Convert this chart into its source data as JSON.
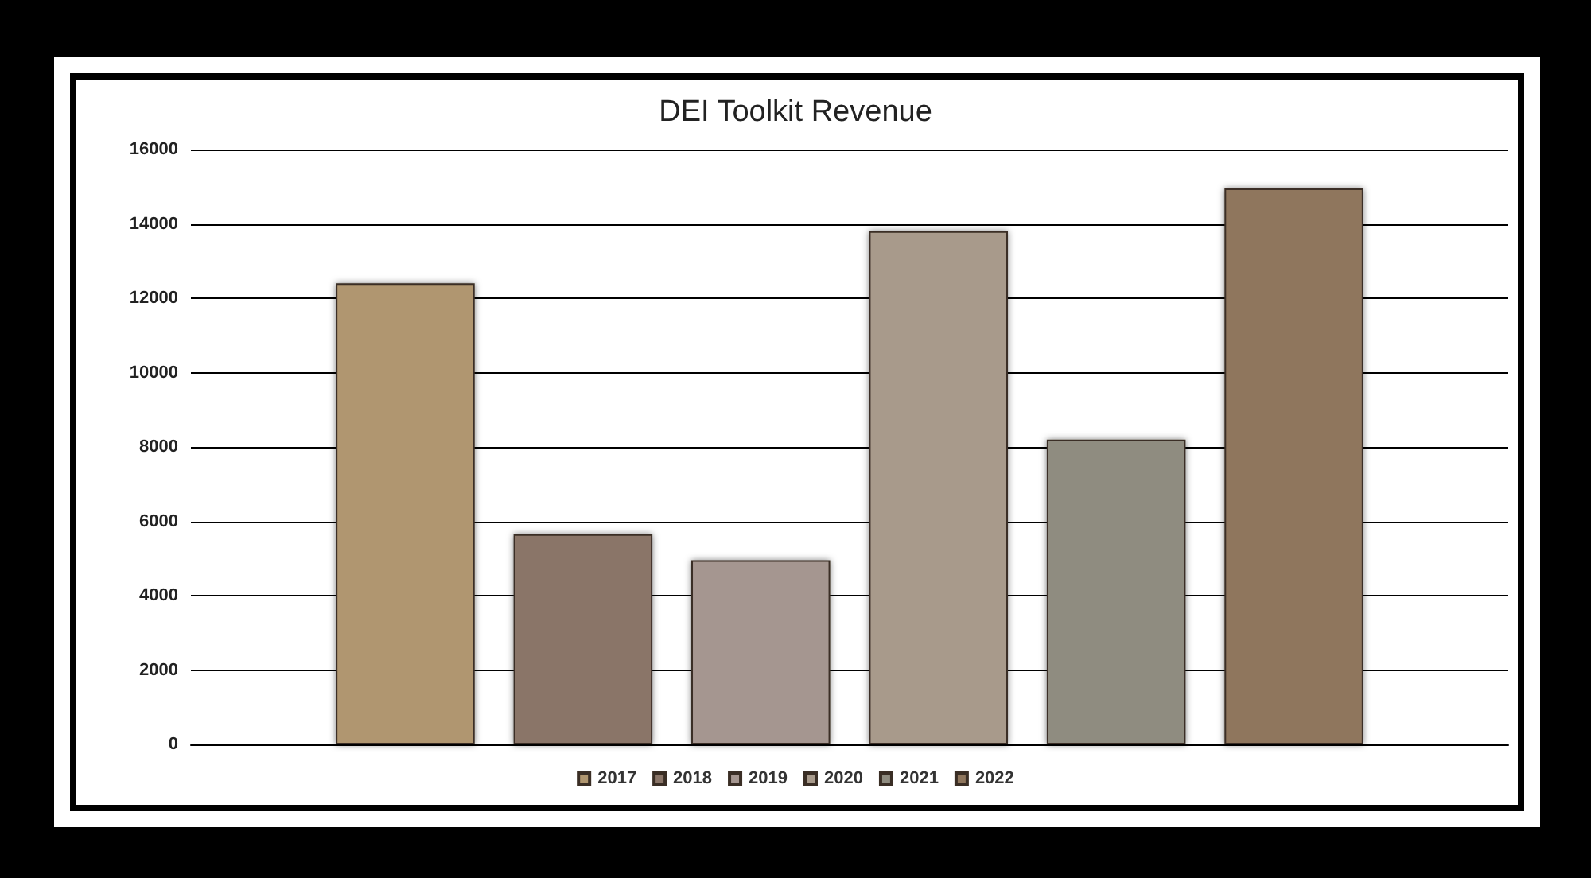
{
  "chart_data": {
    "type": "bar",
    "title": "DEI Toolkit Revenue",
    "categories": [
      null
    ],
    "series": [
      {
        "name": "2017",
        "color": "#b0966f",
        "values": [
          12400
        ]
      },
      {
        "name": "2018",
        "color": "#8a7568",
        "values": [
          5650
        ]
      },
      {
        "name": "2019",
        "color": "#a59690",
        "values": [
          4950
        ]
      },
      {
        "name": "2020",
        "color": "#a89a8b",
        "values": [
          13800
        ]
      },
      {
        "name": "2021",
        "color": "#8f8c80",
        "values": [
          8200
        ]
      },
      {
        "name": "2022",
        "color": "#8f765d",
        "values": [
          14950
        ]
      }
    ],
    "ylim": [
      0,
      16000
    ],
    "yticks": [
      0,
      2000,
      4000,
      6000,
      8000,
      10000,
      12000,
      14000,
      16000
    ],
    "grid": "y",
    "legend": "bottom"
  }
}
